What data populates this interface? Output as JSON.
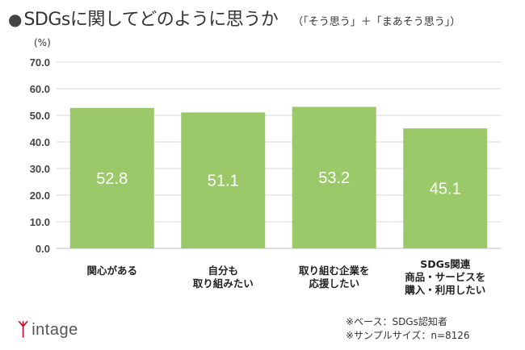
{
  "title": {
    "bullet": "●",
    "main": "SDGsに関してどのように思うか",
    "sub": "（「そう思う」＋「まあそう思う」）"
  },
  "chart_data": {
    "type": "bar",
    "y_unit": "(%)",
    "categories": [
      [
        "関心がある"
      ],
      [
        "自分も",
        "取り組みたい"
      ],
      [
        "取り組む企業を",
        "応援したい"
      ],
      [
        "SDGs関連",
        "商品・サービスを",
        "購入・利用したい"
      ]
    ],
    "values": [
      52.8,
      51.1,
      53.2,
      45.1
    ],
    "value_labels": [
      "52.8",
      "51.1",
      "53.2",
      "45.1"
    ],
    "ylim": [
      0,
      70
    ],
    "yticks": [
      "0.0",
      "10.0",
      "20.0",
      "30.0",
      "40.0",
      "50.0",
      "60.0",
      "70.0"
    ],
    "grid": true,
    "bar_color": "#9bc96a",
    "grid_color": "#d9d9d9"
  },
  "logo": {
    "mark": "쌌",
    "text": "intage"
  },
  "notes": [
    "※ベース：SDGs認知者",
    "※サンプルサイズ：n=8126"
  ]
}
